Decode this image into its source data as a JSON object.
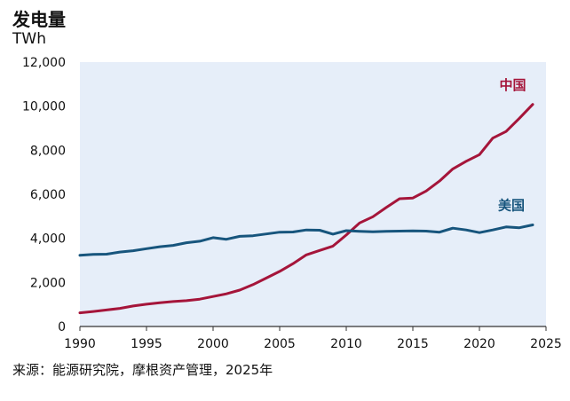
{
  "chart_data": {
    "type": "line",
    "title": "发电量",
    "ylabel": "TWh",
    "xlabel": "",
    "source": "来源：能源研究院，摩根资产管理，2025年",
    "xlim": [
      1990,
      2025
    ],
    "ylim": [
      0,
      12000
    ],
    "x_ticks": [
      "1990",
      "1995",
      "2000",
      "2005",
      "2010",
      "2015",
      "2020",
      "2025"
    ],
    "y_ticks": [
      "0",
      "2,000",
      "4,000",
      "6,000",
      "8,000",
      "10,000",
      "12,000"
    ],
    "plot_background": "#e6eef9",
    "series": [
      {
        "name": "中国",
        "color": "#a5153a",
        "x": [
          1990,
          1991,
          1992,
          1993,
          1994,
          1995,
          1996,
          1997,
          1998,
          1999,
          2000,
          2001,
          2002,
          2003,
          2004,
          2005,
          2006,
          2007,
          2008,
          2009,
          2010,
          2011,
          2012,
          2013,
          2014,
          2015,
          2016,
          2017,
          2018,
          2019,
          2020,
          2021,
          2022,
          2023,
          2024
        ],
        "values": [
          620,
          680,
          750,
          820,
          930,
          1010,
          1080,
          1130,
          1170,
          1240,
          1360,
          1480,
          1650,
          1900,
          2200,
          2500,
          2850,
          3250,
          3450,
          3650,
          4150,
          4700,
          4980,
          5400,
          5800,
          5830,
          6150,
          6600,
          7150,
          7500,
          7800,
          8550,
          8850,
          9450,
          10080
        ]
      },
      {
        "name": "美国",
        "color": "#17557d",
        "x": [
          1990,
          1991,
          1992,
          1993,
          1994,
          1995,
          1996,
          1997,
          1998,
          1999,
          2000,
          2001,
          2002,
          2003,
          2004,
          2005,
          2006,
          2007,
          2008,
          2009,
          2010,
          2011,
          2012,
          2013,
          2014,
          2015,
          2016,
          2017,
          2018,
          2019,
          2020,
          2021,
          2022,
          2023,
          2024
        ],
        "values": [
          3230,
          3270,
          3280,
          3380,
          3440,
          3530,
          3620,
          3680,
          3800,
          3870,
          4030,
          3960,
          4090,
          4120,
          4200,
          4280,
          4290,
          4380,
          4370,
          4190,
          4350,
          4320,
          4300,
          4320,
          4330,
          4340,
          4330,
          4280,
          4460,
          4380,
          4260,
          4380,
          4520,
          4480,
          4610
        ]
      }
    ]
  }
}
